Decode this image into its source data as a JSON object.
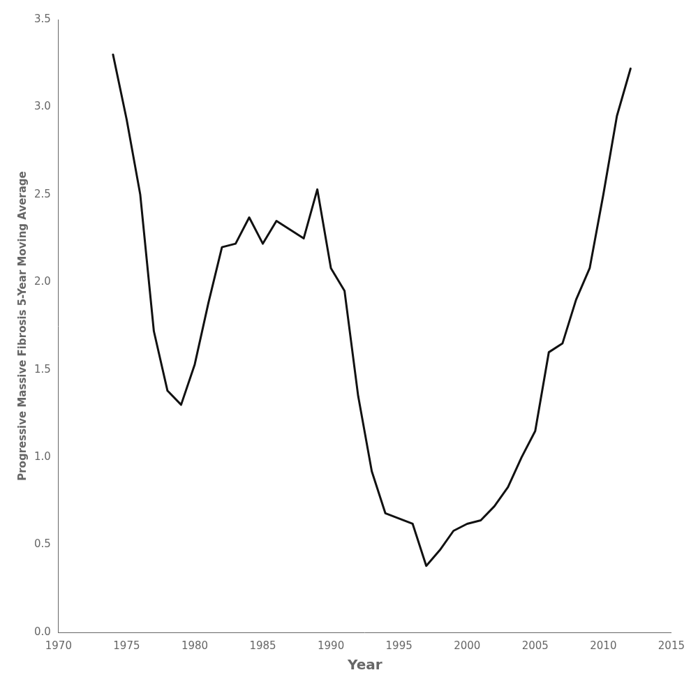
{
  "chart_data": {
    "type": "line",
    "x": [
      1974,
      1975,
      1976,
      1977,
      1978,
      1979,
      1980,
      1981,
      1982,
      1983,
      1984,
      1985,
      1986,
      1987,
      1988,
      1989,
      1990,
      1991,
      1992,
      1993,
      1994,
      1995,
      1996,
      1997,
      1998,
      1999,
      2000,
      2001,
      2002,
      2003,
      2004,
      2005,
      2006,
      2007,
      2008,
      2009,
      2010,
      2011,
      2012
    ],
    "values": [
      3.3,
      2.93,
      2.5,
      1.72,
      1.38,
      1.3,
      1.53,
      1.88,
      2.2,
      2.22,
      2.37,
      2.22,
      2.35,
      2.3,
      2.25,
      2.53,
      2.08,
      1.95,
      1.35,
      0.92,
      0.68,
      0.65,
      0.62,
      0.38,
      0.47,
      0.58,
      0.62,
      0.64,
      0.72,
      0.83,
      1.0,
      1.15,
      1.6,
      1.65,
      1.9,
      2.08,
      2.5,
      2.95,
      3.22
    ],
    "color": "#111111",
    "xlabel": "Year",
    "ylabel": "Progressive Massive Fibrosis 5-Year Moving Average",
    "xlim": [
      1970,
      2015
    ],
    "ylim": [
      0.0,
      3.5
    ],
    "xticks": [
      1970,
      1975,
      1980,
      1985,
      1990,
      1995,
      2000,
      2005,
      2010,
      2015
    ],
    "yticks": [
      {
        "value": 0.0,
        "label": "0.0"
      },
      {
        "value": 0.5,
        "label": "0.5"
      },
      {
        "value": 1.0,
        "label": "1.0"
      },
      {
        "value": 1.5,
        "label": "1.5"
      },
      {
        "value": 2.0,
        "label": "2.0"
      },
      {
        "value": 2.5,
        "label": "2.5"
      },
      {
        "value": 3.0,
        "label": "3.0"
      },
      {
        "value": 3.5,
        "label": "3.5"
      }
    ],
    "grid": false
  }
}
